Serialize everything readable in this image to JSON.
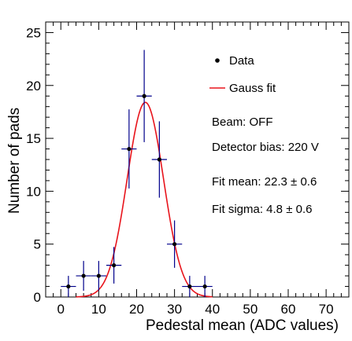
{
  "chart_data": {
    "type": "scatter",
    "xlabel": "Pedestal mean (ADC values)",
    "ylabel": "Number of pads",
    "xlim": [
      -4,
      76
    ],
    "ylim": [
      0,
      26
    ],
    "x_ticks": [
      0,
      10,
      20,
      30,
      40,
      50,
      60,
      70
    ],
    "y_ticks": [
      0,
      5,
      10,
      15,
      20,
      25
    ],
    "grid": false,
    "legend_position": "top-right",
    "series": [
      {
        "name": "Data",
        "marker": "dot",
        "color": "#000000",
        "error_color": "#00008b",
        "bin_half_width": 2,
        "points": [
          {
            "x": 2,
            "y": 1,
            "yerr": 1.0
          },
          {
            "x": 6,
            "y": 2,
            "yerr": 1.41
          },
          {
            "x": 10,
            "y": 2,
            "yerr": 1.41
          },
          {
            "x": 14,
            "y": 3,
            "yerr": 1.73
          },
          {
            "x": 18,
            "y": 14,
            "yerr": 3.74
          },
          {
            "x": 22,
            "y": 19,
            "yerr": 4.36
          },
          {
            "x": 26,
            "y": 13,
            "yerr": 3.61
          },
          {
            "x": 30,
            "y": 5,
            "yerr": 2.24
          },
          {
            "x": 34,
            "y": 1,
            "yerr": 1.0
          },
          {
            "x": 38,
            "y": 1,
            "yerr": 1.0
          }
        ]
      },
      {
        "name": "Gauss fit",
        "type": "line",
        "color": "#e8141c",
        "function": "gaussian",
        "amplitude": 18.4,
        "mean": 22.3,
        "sigma": 4.8,
        "x_range": [
          4,
          40
        ]
      }
    ],
    "annotations": [
      "Beam: OFF",
      "Detector bias: 220 V",
      "Fit mean: 22.3 ± 0.6",
      "Fit sigma: 4.8 ± 0.6"
    ]
  }
}
